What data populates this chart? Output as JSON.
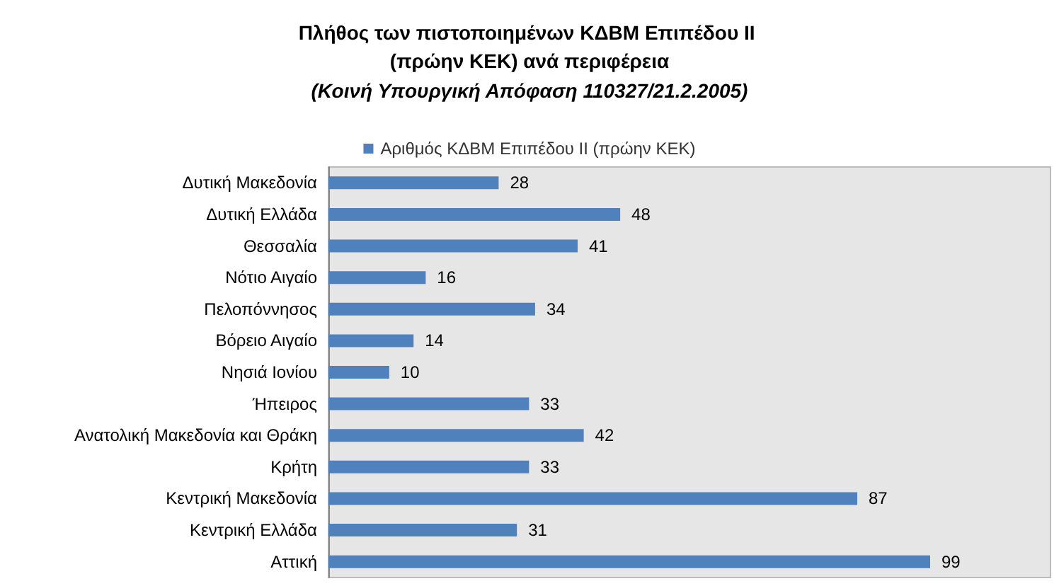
{
  "chart_data": {
    "type": "bar",
    "orientation": "horizontal",
    "title": "Πλήθος των πιστοποιημένων ΚΔΒΜ Επιπέδου ΙΙ (πρώην ΚΕΚ) ανά περιφέρεια",
    "subtitle": "(Κοινή Υπουργική Απόφαση 110327/21.2.2005)",
    "categories": [
      "Δυτική Μακεδονία",
      "Δυτική Ελλάδα",
      "Θεσσαλία",
      "Νότιο Αιγαίο",
      "Πελοπόννησος",
      "Βόρειο Αιγαίο",
      "Νησιά Ιονίου",
      "Ήπειρος",
      "Ανατολική Μακεδονία και Θράκη",
      "Κρήτη",
      "Κεντρική Μακεδονία",
      "Κεντρική Ελλάδα",
      "Αττική"
    ],
    "series": [
      {
        "name": "Αριθμός ΚΔΒΜ Επιπέδου ΙΙ (πρώην ΚΕΚ)",
        "color": "#4f81bd",
        "values": [
          28,
          48,
          41,
          16,
          34,
          14,
          10,
          33,
          42,
          33,
          87,
          31,
          99
        ]
      }
    ],
    "data_labels": true,
    "legend": "top",
    "grid": false
  }
}
